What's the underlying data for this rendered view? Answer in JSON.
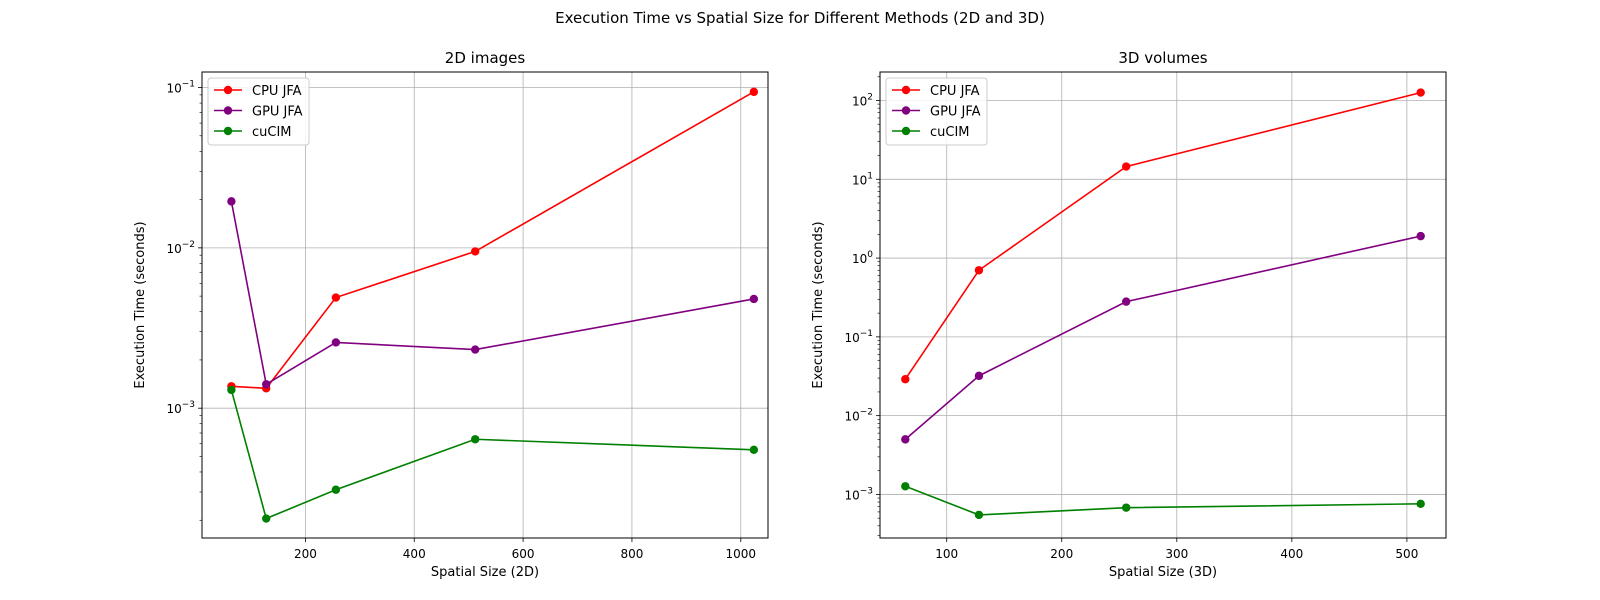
{
  "figure": {
    "title": "Execution Time vs Spatial Size for Different Methods (2D and 3D)"
  },
  "chart_data": [
    {
      "type": "line",
      "title": "2D images",
      "xlabel": "Spatial Size (2D)",
      "ylabel": "Execution Time (seconds)",
      "yscale": "log",
      "xlim": [
        10,
        1050
      ],
      "ylim": [
        0.000155,
        0.125
      ],
      "xticks": [
        200,
        400,
        600,
        800,
        1000
      ],
      "xtick_labels": [
        "200",
        "400",
        "600",
        "800",
        "1000"
      ],
      "yticks": [
        0.001,
        0.01,
        0.1
      ],
      "ytick_labels": [
        "10",
        "10",
        "10"
      ],
      "ytick_exponents": [
        "−3",
        "−2",
        "−1"
      ],
      "grid": true,
      "legend": "top-left",
      "x": [
        64,
        128,
        256,
        512,
        1024
      ],
      "series": [
        {
          "name": "CPU JFA",
          "color": "#ff0000",
          "values": [
            0.00137,
            0.00133,
            0.0049,
            0.0095,
            0.094
          ]
        },
        {
          "name": "GPU JFA",
          "color": "#800080",
          "values": [
            0.0195,
            0.00141,
            0.00257,
            0.00232,
            0.0048
          ]
        },
        {
          "name": "cuCIM",
          "color": "#008000",
          "values": [
            0.0013,
            0.000205,
            0.00031,
            0.00064,
            0.00055
          ]
        }
      ]
    },
    {
      "type": "line",
      "title": "3D volumes",
      "xlabel": "Spatial Size (3D)",
      "ylabel": "Execution Time (seconds)",
      "yscale": "log",
      "xlim": [
        42,
        534
      ],
      "ylim": [
        0.00028,
        230
      ],
      "xticks": [
        100,
        200,
        300,
        400,
        500
      ],
      "xtick_labels": [
        "100",
        "200",
        "300",
        "400",
        "500"
      ],
      "yticks": [
        0.001,
        0.01,
        0.1,
        1,
        10,
        100
      ],
      "ytick_labels": [
        "10",
        "10",
        "10",
        "10",
        "10",
        "10"
      ],
      "ytick_exponents": [
        "−3",
        "−2",
        "−1",
        "0",
        "1",
        "2"
      ],
      "grid": true,
      "legend": "top-left",
      "x": [
        64,
        128,
        256,
        512
      ],
      "series": [
        {
          "name": "CPU JFA",
          "color": "#ff0000",
          "values": [
            0.029,
            0.7,
            14.5,
            126
          ]
        },
        {
          "name": "GPU JFA",
          "color": "#800080",
          "values": [
            0.005,
            0.032,
            0.28,
            1.9
          ]
        },
        {
          "name": "cuCIM",
          "color": "#008000",
          "values": [
            0.00127,
            0.00055,
            0.00068,
            0.00076
          ]
        }
      ]
    }
  ]
}
